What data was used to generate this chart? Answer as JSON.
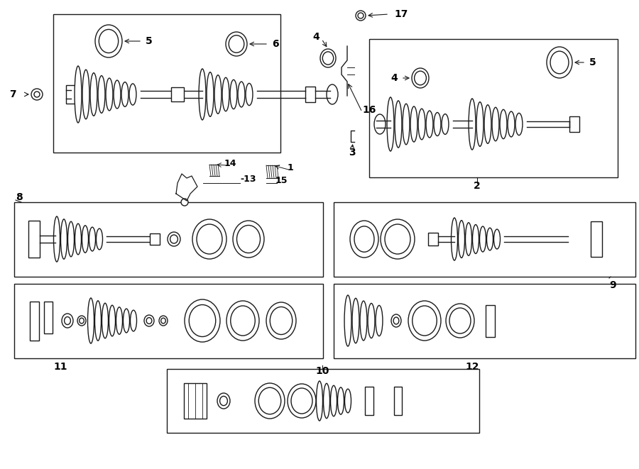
{
  "bg_color": "#ffffff",
  "lc": "#1a1a1a",
  "lw": 1.0,
  "figw": 9.0,
  "figh": 6.61,
  "dpi": 100,
  "boxes": {
    "b1": [
      75,
      20,
      395,
      215
    ],
    "b2": [
      520,
      55,
      870,
      250
    ],
    "b8": [
      20,
      285,
      455,
      390
    ],
    "b9": [
      470,
      285,
      895,
      390
    ],
    "b11": [
      20,
      400,
      455,
      505
    ],
    "b12": [
      470,
      400,
      895,
      505
    ],
    "b10": [
      235,
      520,
      675,
      610
    ]
  },
  "labels": {
    "5a": [
      183,
      48,
      210,
      68
    ],
    "6": [
      343,
      52,
      375,
      68
    ],
    "4a": [
      455,
      42,
      470,
      58
    ],
    "7": [
      18,
      130,
      35,
      145
    ],
    "4b": [
      570,
      100,
      590,
      115
    ],
    "5b": [
      788,
      75,
      820,
      90
    ],
    "2": [
      670,
      260,
      690,
      272
    ],
    "17": [
      540,
      15,
      570,
      28
    ],
    "16": [
      506,
      160,
      525,
      175
    ],
    "3": [
      496,
      195,
      512,
      208
    ],
    "8": [
      22,
      268,
      40,
      282
    ],
    "9": [
      854,
      392,
      875,
      405
    ],
    "1": [
      413,
      238,
      428,
      252
    ],
    "13": [
      330,
      248,
      358,
      262
    ],
    "14": [
      280,
      232,
      310,
      245
    ],
    "15": [
      385,
      252,
      412,
      265
    ],
    "11": [
      75,
      508,
      105,
      520
    ],
    "12": [
      650,
      508,
      680,
      520
    ],
    "10": [
      454,
      514,
      478,
      527
    ]
  }
}
